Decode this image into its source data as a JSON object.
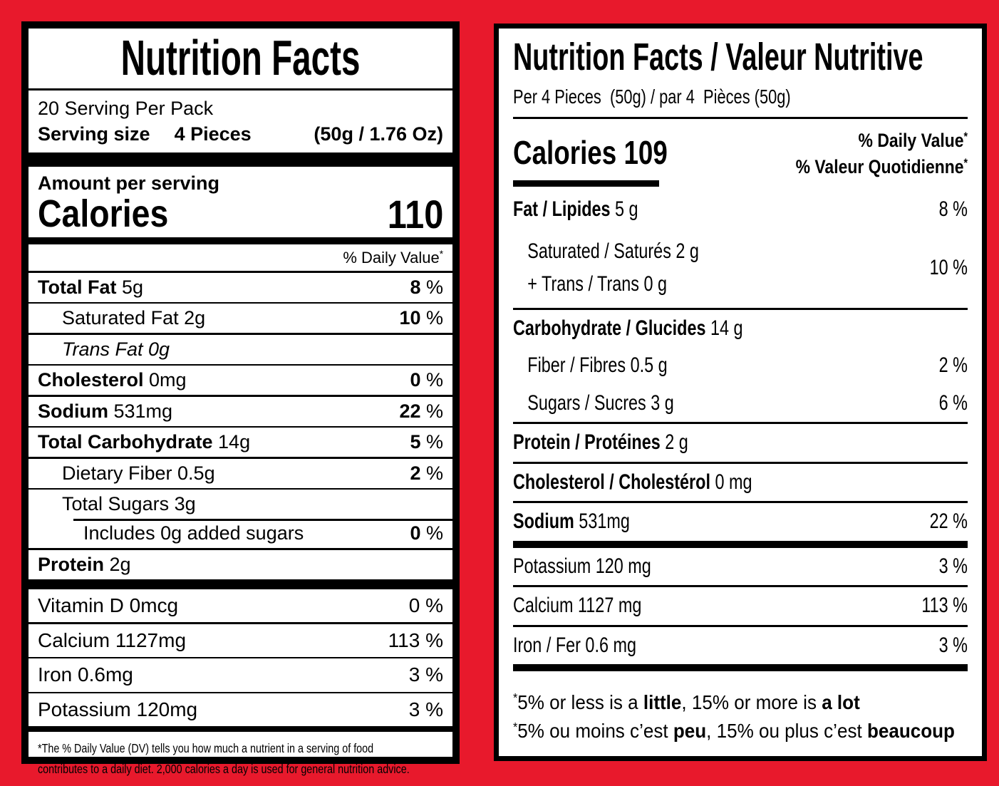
{
  "colors": {
    "background": "#e8192c",
    "label_bg": "#ffffff",
    "ink": "#000000"
  },
  "us_label": {
    "title": "Nutrition Facts",
    "servings_per_pack": "20 Serving Per Pack",
    "serving_size_label": "Serving size",
    "serving_size_value": "4 Pieces",
    "serving_size_weight": "(50g / 1.76 Oz)",
    "amount_per_serving": "Amount per serving",
    "calories_label": "Calories",
    "calories_value": "110",
    "daily_value_header": "% Daily Value",
    "footnote_marker": "*",
    "percent_suffix": " %",
    "rows": [
      {
        "name_bold": "Total Fat",
        "amount": " 5g",
        "percent": "8"
      },
      {
        "name": "Saturated Fat 2g",
        "percent": "10"
      },
      {
        "name_italic": "Trans Fat 0g"
      },
      {
        "name_bold": "Cholesterol",
        "amount": " 0mg",
        "percent": "0"
      },
      {
        "name_bold": "Sodium",
        "amount": " 531mg",
        "percent": "22"
      },
      {
        "name_bold": "Total Carbohydrate",
        "amount": " 14g",
        "percent": "5"
      },
      {
        "name": "Dietary Fiber 0.5g",
        "percent": "2"
      },
      {
        "name": "Total Sugars 3g"
      },
      {
        "name": "Includes 0g added sugars",
        "percent": "0"
      },
      {
        "name_bold": "Protein",
        "amount": " 2g"
      }
    ],
    "micronutrients": [
      {
        "name": "Vitamin D 0mcg",
        "percent": "0"
      },
      {
        "name": "Calcium 1127mg",
        "percent": "113"
      },
      {
        "name": "Iron 0.6mg",
        "percent": "3"
      },
      {
        "name": "Potassium 120mg",
        "percent": "3"
      }
    ],
    "footnote_line1": "*The % Daily Value (DV) tells you how much a nutrient in a serving of food",
    "footnote_line2": "contributes to a daily diet. 2,000 calories a day is used for general nutrition advice."
  },
  "ca_label": {
    "title": "Nutrition Facts / Valeur Nutritive",
    "serving_line": "Per 4 Pieces  (50g) / par 4  Pièces (50g)",
    "calories_line": "Calories 109",
    "daily_value_header_en": "% Daily Value",
    "daily_value_header_fr": "% Valeur Quotidienne",
    "footnote_marker": "*",
    "rows": {
      "fat": {
        "name_bold": "Fat / Lipides",
        "amount": " 5 g",
        "percent": "8 %"
      },
      "saturated": {
        "line1": "Saturated / Saturés 2 g",
        "line2": "+ Trans / Trans 0 g",
        "percent": "10 %"
      },
      "carbohydrate": {
        "name_bold": "Carbohydrate / Glucides",
        "amount": " 14 g"
      },
      "fiber": {
        "name": "Fiber / Fibres 0.5 g",
        "percent": "2 %"
      },
      "sugars": {
        "name": "Sugars / Sucres 3 g",
        "percent": "6 %"
      },
      "protein": {
        "name_bold": "Protein / Protéines",
        "amount": " 2 g"
      },
      "cholesterol": {
        "name_bold": "Cholesterol / Cholestérol",
        "amount": " 0 mg"
      },
      "sodium": {
        "name_bold": "Sodium",
        "amount": " 531mg",
        "percent": "22 %"
      },
      "potassium": {
        "name": "Potassium 120 mg",
        "percent": "3 %"
      },
      "calcium": {
        "name": "Calcium 1127 mg",
        "percent": "113 %"
      },
      "iron": {
        "name": "Iron / Fer 0.6 mg",
        "percent": "3 %"
      }
    },
    "footnote_en": {
      "pre": "5% or less is a ",
      "bold1": "little",
      "mid": ", 15% or more is ",
      "bold2": "a lot"
    },
    "footnote_fr": {
      "pre": "5% ou moins c’est ",
      "bold1": "peu",
      "mid": ", 15% ou plus c’est ",
      "bold2": "beaucoup"
    }
  }
}
